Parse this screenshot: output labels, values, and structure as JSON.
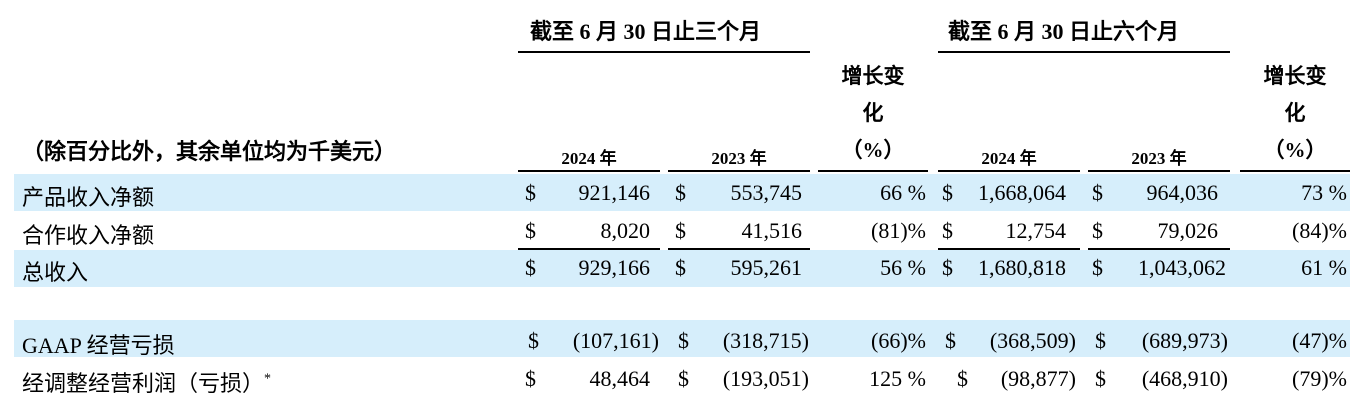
{
  "header": {
    "group_three_months": "截至 6 月 30 日止三个月",
    "group_six_months": "截至 6 月 30 日止六个月",
    "change_label_line1": "增长变",
    "change_label_line2": "化",
    "change_label_line3": "（%）",
    "unit_note": "（除百分比外，其余单位均为千美元）",
    "year_2024": "2024 年",
    "year_2023": "2023 年"
  },
  "rows": [
    {
      "label": "产品收入净额",
      "q24_sign": "$",
      "q24": "921,146",
      "q23_sign": "$",
      "q23": "553,745",
      "q_chg": "66 %",
      "h24_sign": "$",
      "h24": "1,668,064",
      "h23_sign": "$",
      "h23": "964,036",
      "h_chg": "73 %"
    },
    {
      "label": "合作收入净额",
      "q24_sign": "$",
      "q24": "8,020",
      "q23_sign": "$",
      "q23": "41,516",
      "q_chg": "(81)%",
      "h24_sign": "$",
      "h24": "12,754",
      "h23_sign": "$",
      "h23": "79,026",
      "h_chg": "(84)%"
    },
    {
      "label": "总收入",
      "q24_sign": "$",
      "q24": "929,166",
      "q23_sign": "$",
      "q23": "595,261",
      "q_chg": "56 %",
      "h24_sign": "$",
      "h24": "1,680,818",
      "h23_sign": "$",
      "h23": "1,043,062",
      "h_chg": "61 %"
    },
    {
      "label": "GAAP 经营亏损",
      "q24_sign": "$",
      "q24": "(107,161)",
      "q23_sign": "$",
      "q23": "(318,715)",
      "q_chg": "(66)%",
      "h24_sign": "$",
      "h24": "(368,509)",
      "h23_sign": "$",
      "h23": "(689,973)",
      "h_chg": "(47)%"
    },
    {
      "label": "经调整经营利润（亏损）",
      "label_mark": "*",
      "q24_sign": "$",
      "q24": "48,464",
      "q23_sign": "$",
      "q23": "(193,051)",
      "q_chg": "125 %",
      "h24_sign": "$",
      "h24": "(98,877)",
      "h23_sign": "$",
      "h23": "(468,910)",
      "h_chg": "(79)%"
    }
  ]
}
